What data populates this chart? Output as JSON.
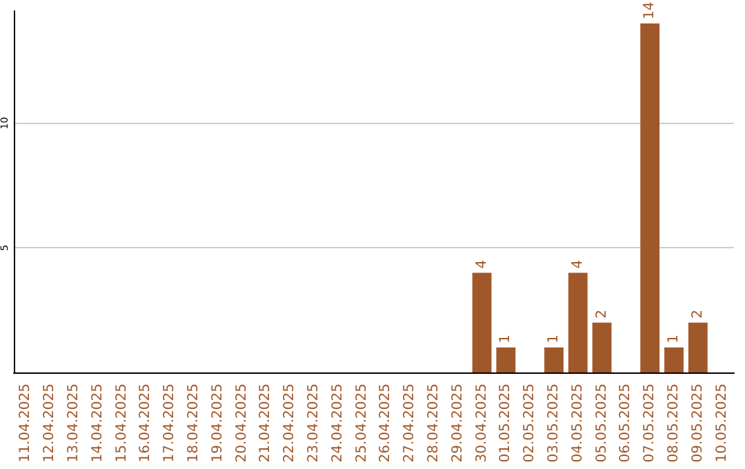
{
  "chart_data": {
    "type": "bar",
    "categories": [
      "11.04.2025",
      "12.04.2025",
      "13.04.2025",
      "14.04.2025",
      "15.04.2025",
      "16.04.2025",
      "17.04.2025",
      "18.04.2025",
      "19.04.2025",
      "20.04.2025",
      "21.04.2025",
      "22.04.2025",
      "23.04.2025",
      "24.04.2025",
      "25.04.2025",
      "26.04.2025",
      "27.04.2025",
      "28.04.2025",
      "29.04.2025",
      "30.04.2025",
      "01.05.2025",
      "02.05.2025",
      "03.05.2025",
      "04.05.2025",
      "05.05.2025",
      "06.05.2025",
      "07.05.2025",
      "08.05.2025",
      "09.05.2025",
      "10.05.2025"
    ],
    "values": [
      0,
      0,
      0,
      0,
      0,
      0,
      0,
      0,
      0,
      0,
      0,
      0,
      0,
      0,
      0,
      0,
      0,
      0,
      0,
      4,
      1,
      0,
      1,
      4,
      2,
      0,
      14,
      1,
      2,
      0
    ],
    "value_labels": [
      null,
      null,
      null,
      null,
      null,
      null,
      null,
      null,
      null,
      null,
      null,
      null,
      null,
      null,
      null,
      null,
      null,
      null,
      null,
      "4",
      "1",
      null,
      "1",
      "4",
      "2",
      null,
      "14",
      "1",
      "2",
      null
    ],
    "color": "#a0582a",
    "ylim": [
      0,
      14.5
    ],
    "yticks": [
      5,
      10
    ],
    "grid": "y"
  }
}
